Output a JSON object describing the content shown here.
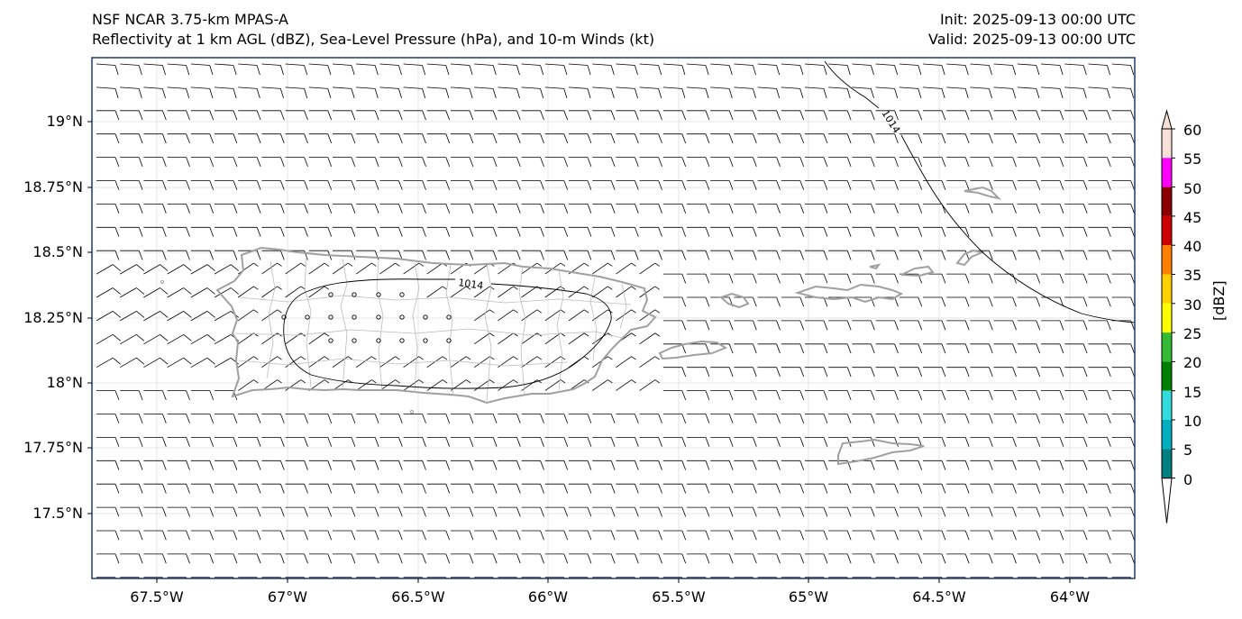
{
  "header": {
    "title_left_1": "NSF NCAR 3.75-km MPAS-A",
    "title_left_2": "Reflectivity at 1 km AGL (dBZ), Sea-Level Pressure (hPa), and 10-m Winds (kt)",
    "title_right_1": "Init: 2025-09-13 00:00 UTC",
    "title_right_2": "Valid: 2025-09-13 00:00 UTC"
  },
  "axes": {
    "lat_labels": [
      "19°N",
      "18.75°N",
      "18.5°N",
      "18.25°N",
      "18°N",
      "17.75°N",
      "17.5°N"
    ],
    "lon_labels": [
      "67.5°W",
      "67°W",
      "66.5°W",
      "66°W",
      "65.5°W",
      "65°W",
      "64.5°W",
      "64°W"
    ],
    "lat_range": [
      17.3,
      19.25
    ],
    "lon_range": [
      -67.75,
      -63.8
    ]
  },
  "contours": {
    "label_1": "1014",
    "label_2": "1014"
  },
  "colorbar": {
    "title": "[dBZ]",
    "ticks": [
      "60",
      "55",
      "50",
      "45",
      "40",
      "35",
      "30",
      "25",
      "20",
      "15",
      "10",
      "5",
      "0"
    ],
    "colors": [
      "#f8e0d8",
      "#ff00ff",
      "#8b0000",
      "#cc0000",
      "#ff8000",
      "#ffd000",
      "#ffff00",
      "#33bb33",
      "#008000",
      "#33dddd",
      "#00b0c0",
      "#008080"
    ],
    "extend": "both"
  },
  "map_colors": {
    "coast": "#a0a0a0",
    "border": "#bbbbbb",
    "frame": "#1f3b6e",
    "barb": "#000000"
  }
}
